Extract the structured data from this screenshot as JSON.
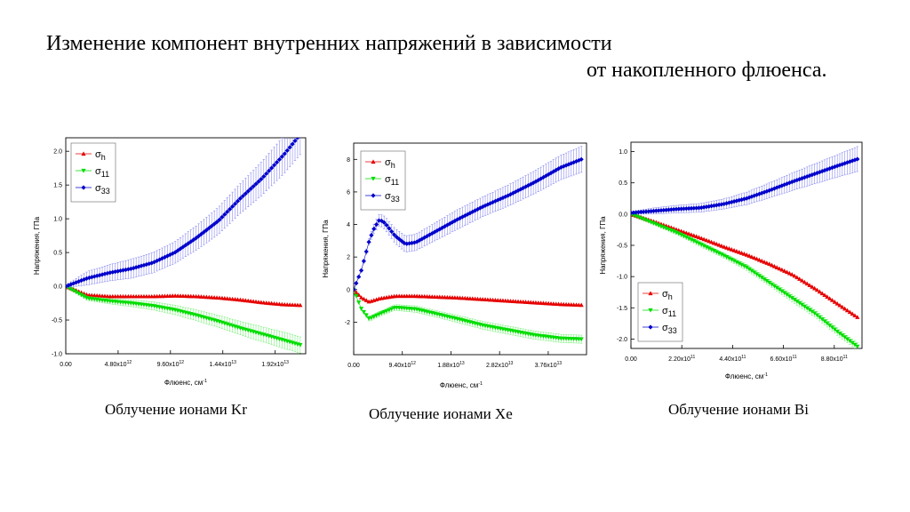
{
  "page": {
    "title_line1": "Изменение компонент внутренних напряжений в зависимости",
    "title_line2": "от накопленного флюенса."
  },
  "colors": {
    "sigma_h": "#e60000",
    "sigma_11": "#00dd00",
    "sigma_33": "#0000cc",
    "errorbar_11": "#66ee66",
    "errorbar_33": "#7777ee"
  },
  "chart_data": [
    {
      "type": "scatter",
      "caption": "Облучение ионами Kr",
      "xlabel": "Флюенс, см",
      "xlabel_sup": "-1",
      "ylabel": "Напряжения, ГПа",
      "xlim": [
        0,
        22000000000000.0
      ],
      "ylim": [
        -1.0,
        2.2
      ],
      "xticks": [
        {
          "v": 0,
          "base": "0.00",
          "exp": ""
        },
        {
          "v": 4800000000000.0,
          "base": "4.80x10",
          "exp": "12"
        },
        {
          "v": 9600000000000.0,
          "base": "9.60x10",
          "exp": "12"
        },
        {
          "v": 14400000000000.0,
          "base": "1.44x10",
          "exp": "13"
        },
        {
          "v": 19200000000000.0,
          "base": "1.92x10",
          "exp": "13"
        }
      ],
      "yticks": [
        "-1.0",
        "-0.5",
        "0.0",
        "0.5",
        "1.0",
        "1.5",
        "2.0"
      ],
      "legend_position": "top-left",
      "series": [
        {
          "name": "σ",
          "sub": "h",
          "marker": "triangle-up",
          "x": [
            0,
            2000000000000.0,
            4000000000000.0,
            6000000000000.0,
            8000000000000.0,
            10000000000000.0,
            12000000000000.0,
            14000000000000.0,
            16000000000000.0,
            18000000000000.0,
            20000000000000.0,
            21500000000000.0
          ],
          "y": [
            0.0,
            -0.13,
            -0.15,
            -0.15,
            -0.15,
            -0.14,
            -0.15,
            -0.17,
            -0.2,
            -0.24,
            -0.27,
            -0.28
          ],
          "err": [
            0,
            0,
            0,
            0,
            0,
            0,
            0,
            0,
            0,
            0,
            0,
            0
          ]
        },
        {
          "name": "σ",
          "sub": "11",
          "marker": "triangle-down",
          "x": [
            0,
            2000000000000.0,
            4000000000000.0,
            6000000000000.0,
            8000000000000.0,
            10000000000000.0,
            12000000000000.0,
            14000000000000.0,
            16000000000000.0,
            18000000000000.0,
            20000000000000.0,
            21500000000000.0
          ],
          "y": [
            0.0,
            -0.18,
            -0.22,
            -0.25,
            -0.29,
            -0.35,
            -0.43,
            -0.52,
            -0.62,
            -0.71,
            -0.8,
            -0.87
          ],
          "err": [
            0.01,
            0.03,
            0.04,
            0.05,
            0.06,
            0.07,
            0.08,
            0.09,
            0.1,
            0.11,
            0.12,
            0.12
          ]
        },
        {
          "name": "σ",
          "sub": "33",
          "marker": "diamond",
          "x": [
            0,
            2000000000000.0,
            4000000000000.0,
            6000000000000.0,
            8000000000000.0,
            10000000000000.0,
            12000000000000.0,
            14000000000000.0,
            16000000000000.0,
            18000000000000.0,
            20000000000000.0,
            21500000000000.0
          ],
          "y": [
            0.0,
            0.12,
            0.2,
            0.26,
            0.35,
            0.5,
            0.72,
            0.97,
            1.3,
            1.6,
            1.95,
            2.25
          ],
          "err": [
            0.02,
            0.1,
            0.12,
            0.14,
            0.15,
            0.16,
            0.18,
            0.2,
            0.22,
            0.25,
            0.28,
            0.3
          ]
        }
      ]
    },
    {
      "type": "scatter",
      "caption": "Облучение ионами Xe",
      "xlabel": "Флюенс, см",
      "xlabel_sup": "-1",
      "ylabel": "Напряжения, ГПа",
      "xlim": [
        0,
        45000000000000.0
      ],
      "ylim": [
        -4,
        9
      ],
      "xticks": [
        {
          "v": 0,
          "base": "0.00",
          "exp": ""
        },
        {
          "v": 9400000000000.0,
          "base": "9.40x10",
          "exp": "12"
        },
        {
          "v": 18800000000000.0,
          "base": "1.88x10",
          "exp": "13"
        },
        {
          "v": 28200000000000.0,
          "base": "2.82x10",
          "exp": "13"
        },
        {
          "v": 37600000000000.0,
          "base": "3.76x10",
          "exp": "13"
        }
      ],
      "yticks": [
        "-2",
        "0",
        "2",
        "4",
        "6",
        "8"
      ],
      "legend_position": "top-left",
      "series": [
        {
          "name": "σ",
          "sub": "h",
          "marker": "triangle-up",
          "x": [
            0,
            1500000000000.0,
            3000000000000.0,
            5000000000000.0,
            8000000000000.0,
            12000000000000.0,
            16000000000000.0,
            20000000000000.0,
            25000000000000.0,
            30000000000000.0,
            35000000000000.0,
            40000000000000.0,
            44000000000000.0
          ],
          "y": [
            0,
            -0.5,
            -0.75,
            -0.55,
            -0.4,
            -0.4,
            -0.45,
            -0.5,
            -0.6,
            -0.7,
            -0.8,
            -0.9,
            -0.95
          ],
          "err": [
            0,
            0,
            0,
            0,
            0,
            0,
            0,
            0,
            0,
            0,
            0,
            0,
            0
          ]
        },
        {
          "name": "σ",
          "sub": "11",
          "marker": "triangle-down",
          "x": [
            0,
            1500000000000.0,
            3000000000000.0,
            5000000000000.0,
            8000000000000.0,
            12000000000000.0,
            16000000000000.0,
            20000000000000.0,
            25000000000000.0,
            30000000000000.0,
            35000000000000.0,
            40000000000000.0,
            44000000000000.0
          ],
          "y": [
            0,
            -1.2,
            -1.8,
            -1.5,
            -1.1,
            -1.2,
            -1.5,
            -1.8,
            -2.2,
            -2.5,
            -2.8,
            -3.0,
            -3.05
          ],
          "err": [
            0.02,
            0.1,
            0.15,
            0.15,
            0.18,
            0.2,
            0.2,
            0.22,
            0.24,
            0.25,
            0.25,
            0.25,
            0.25
          ]
        },
        {
          "name": "σ",
          "sub": "33",
          "marker": "diamond",
          "x": [
            0,
            1500000000000.0,
            3000000000000.0,
            4000000000000.0,
            5000000000000.0,
            6000000000000.0,
            8000000000000.0,
            10000000000000.0,
            12000000000000.0,
            16000000000000.0,
            20000000000000.0,
            25000000000000.0,
            30000000000000.0,
            35000000000000.0,
            40000000000000.0,
            44000000000000.0
          ],
          "y": [
            0,
            1.2,
            3.0,
            3.8,
            4.3,
            4.1,
            3.3,
            2.8,
            2.9,
            3.6,
            4.3,
            5.1,
            5.8,
            6.6,
            7.5,
            8.0
          ],
          "err": [
            0.02,
            0.1,
            0.2,
            0.3,
            0.35,
            0.4,
            0.45,
            0.5,
            0.5,
            0.55,
            0.6,
            0.6,
            0.65,
            0.7,
            0.75,
            0.8
          ]
        }
      ]
    },
    {
      "type": "scatter",
      "caption": "Облучение ионами Bi",
      "xlabel": "Флюенс, см",
      "xlabel_sup": "-1",
      "ylabel": "Напряжения, ГПа",
      "xlim": [
        0,
        1000000000000.0
      ],
      "ylim": [
        -2.15,
        1.15
      ],
      "xticks": [
        {
          "v": 0,
          "base": "0.00",
          "exp": ""
        },
        {
          "v": 220000000000.0,
          "base": "2.20x10",
          "exp": "11"
        },
        {
          "v": 440000000000.0,
          "base": "4.40x10",
          "exp": "11"
        },
        {
          "v": 660000000000.0,
          "base": "6.60x10",
          "exp": "11"
        },
        {
          "v": 880000000000.0,
          "base": "8.80x10",
          "exp": "11"
        }
      ],
      "yticks": [
        "-2.0",
        "-1.5",
        "-1.0",
        "-0.5",
        "0.0",
        "0.5",
        "1.0"
      ],
      "legend_position": "bottom-left",
      "series": [
        {
          "name": "σ",
          "sub": "h",
          "marker": "triangle-up",
          "x": [
            0,
            100000000000.0,
            200000000000.0,
            300000000000.0,
            400000000000.0,
            500000000000.0,
            600000000000.0,
            700000000000.0,
            800000000000.0,
            900000000000.0,
            980000000000.0
          ],
          "y": [
            0,
            -0.12,
            -0.25,
            -0.38,
            -0.52,
            -0.65,
            -0.8,
            -0.97,
            -1.2,
            -1.45,
            -1.65
          ],
          "err": [
            0,
            0,
            0,
            0,
            0,
            0,
            0,
            0,
            0,
            0,
            0
          ]
        },
        {
          "name": "σ",
          "sub": "11",
          "marker": "triangle-down",
          "x": [
            0,
            100000000000.0,
            200000000000.0,
            300000000000.0,
            400000000000.0,
            500000000000.0,
            600000000000.0,
            700000000000.0,
            800000000000.0,
            900000000000.0,
            980000000000.0
          ],
          "y": [
            0,
            -0.15,
            -0.3,
            -0.48,
            -0.66,
            -0.85,
            -1.1,
            -1.35,
            -1.6,
            -1.9,
            -2.12
          ],
          "err": [
            0,
            0.02,
            0.03,
            0.04,
            0.04,
            0.05,
            0.05,
            0.06,
            0.06,
            0.06,
            0.06
          ]
        },
        {
          "name": "σ",
          "sub": "33",
          "marker": "diamond",
          "x": [
            0,
            100000000000.0,
            200000000000.0,
            300000000000.0,
            400000000000.0,
            500000000000.0,
            600000000000.0,
            700000000000.0,
            800000000000.0,
            900000000000.0,
            980000000000.0
          ],
          "y": [
            0.02,
            0.05,
            0.08,
            0.1,
            0.16,
            0.25,
            0.38,
            0.52,
            0.65,
            0.78,
            0.88
          ],
          "err": [
            0.02,
            0.05,
            0.06,
            0.07,
            0.08,
            0.1,
            0.12,
            0.14,
            0.16,
            0.18,
            0.2
          ]
        }
      ]
    }
  ]
}
